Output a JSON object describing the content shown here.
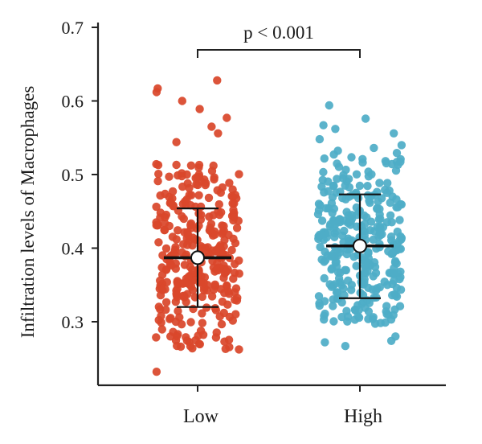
{
  "chart_data": {
    "type": "scatter",
    "subtype": "jittered strip plot with mean and SD error bars",
    "ylabel": "Infiltration levels of Macrophages",
    "xlabel": "",
    "ylim": [
      0.22,
      0.7
    ],
    "yticks": [
      0.3,
      0.4,
      0.5,
      0.6,
      0.7
    ],
    "categories": [
      "Low",
      "High"
    ],
    "groups": [
      {
        "name": "Low",
        "color": "#d9472b",
        "mean": 0.387,
        "sd_low": 0.32,
        "sd_high": 0.454,
        "range": [
          0.232,
          0.628
        ],
        "n_points": 340,
        "jitter_seed": 17,
        "outliers": [
          0.628,
          0.617,
          0.612,
          0.6,
          0.589,
          0.577,
          0.565,
          0.556,
          0.544,
          0.232,
          0.275,
          0.28
        ]
      },
      {
        "name": "High",
        "color": "#4fadc7",
        "mean": 0.403,
        "sd_low": 0.332,
        "sd_high": 0.473,
        "range": [
          0.267,
          0.594
        ],
        "n_points": 340,
        "jitter_seed": 41,
        "outliers": [
          0.594,
          0.576,
          0.567,
          0.562,
          0.556,
          0.548,
          0.54,
          0.267,
          0.272,
          0.274,
          0.28
        ]
      }
    ],
    "annotation": {
      "text": "p < 0.001",
      "between": [
        "Low",
        "High"
      ],
      "bracket_y": 0.68
    }
  }
}
